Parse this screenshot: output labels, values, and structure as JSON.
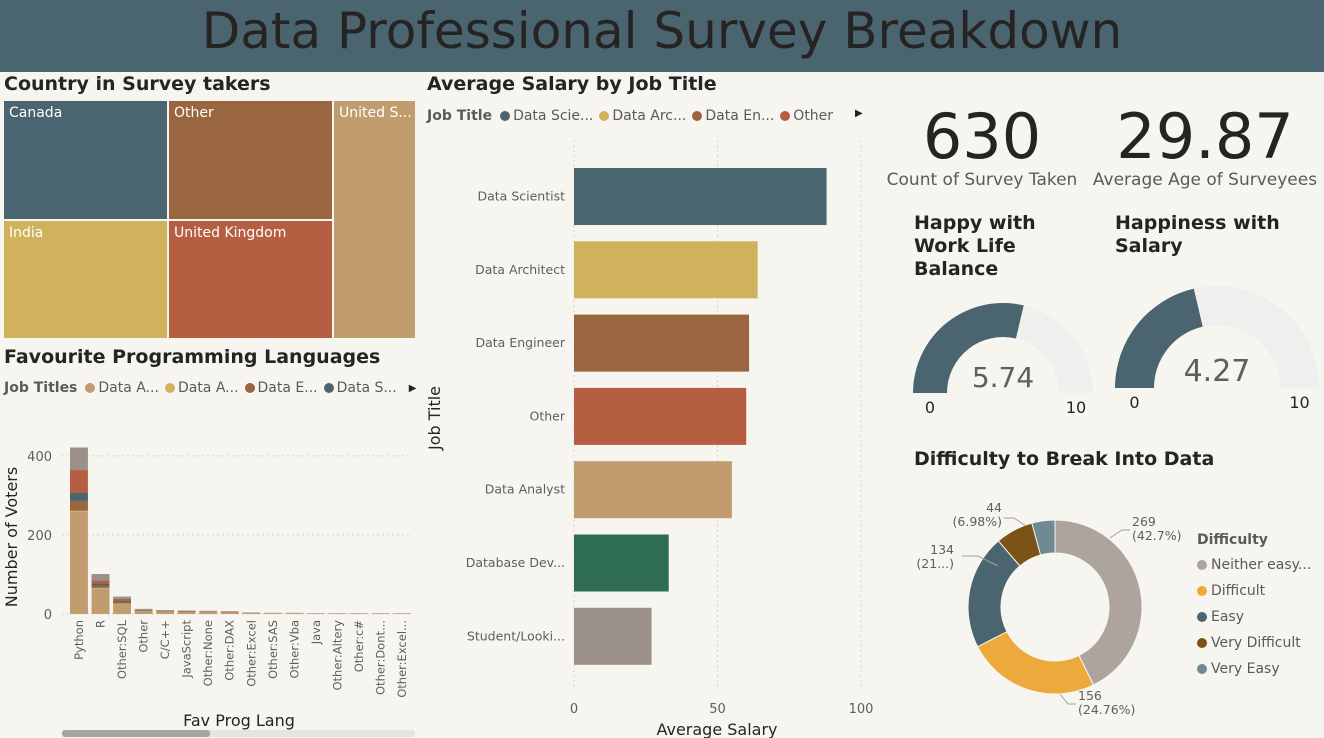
{
  "header": {
    "title": "Data Professional Survey Breakdown"
  },
  "colors": {
    "slate": "#4a6470",
    "gold": "#d0b25d",
    "brown": "#99663f",
    "rust": "#b65e42",
    "tan": "#c19c6e",
    "green": "#2e6d52",
    "gray": "#9b918a",
    "orange": "#eda93c",
    "dark_brown": "#7b5316",
    "teal_gray": "#6f8a92",
    "light_gray": "#ada59d"
  },
  "treemap": {
    "title": "Country in Survey takers",
    "cells": [
      {
        "label": "Canada",
        "color": "slate"
      },
      {
        "label": "Other",
        "color": "brown"
      },
      {
        "label": "United S...",
        "color": "tan"
      },
      {
        "label": "India",
        "color": "gold"
      },
      {
        "label": "United Kingdom",
        "color": "rust"
      }
    ]
  },
  "languages": {
    "title": "Favourite Programming Languages",
    "legend": {
      "title": "Job Titles",
      "items": [
        {
          "label": "Data A...",
          "color": "tan"
        },
        {
          "label": "Data A...",
          "color": "gold"
        },
        {
          "label": "Data E...",
          "color": "brown"
        },
        {
          "label": "Data S...",
          "color": "slate"
        }
      ]
    }
  },
  "salary": {
    "title": "Average Salary by Job Title",
    "legend": {
      "title": "Job Title",
      "items": [
        {
          "label": "Data Scie...",
          "color": "slate"
        },
        {
          "label": "Data Arc...",
          "color": "gold"
        },
        {
          "label": "Data En...",
          "color": "brown"
        },
        {
          "label": "Other",
          "color": "rust"
        }
      ]
    }
  },
  "kpis": {
    "count": {
      "value": "630",
      "label": "Count of Survey Taken"
    },
    "age": {
      "value": "29.87",
      "label": "Average Age of Surveyees"
    }
  },
  "gauges": [
    {
      "title": "Happy with Work Life Balance",
      "value": 5.74,
      "display": "5.74",
      "min": "0",
      "max": "10",
      "min_value": 0,
      "max_value": 10
    },
    {
      "title": "Happiness with Salary",
      "value": 4.27,
      "display": "4.27",
      "min": "0",
      "max": "10",
      "min_value": 0,
      "max_value": 10
    }
  ],
  "difficulty": {
    "title": "Difficulty to Break Into Data",
    "legend_title": "Difficulty",
    "legend": [
      {
        "label": "Neither easy...",
        "color": "light_gray"
      },
      {
        "label": "Difficult",
        "color": "orange"
      },
      {
        "label": "Easy",
        "color": "slate"
      },
      {
        "label": "Very Difficult",
        "color": "dark_brown"
      },
      {
        "label": "Very Easy",
        "color": "teal_gray"
      }
    ]
  },
  "chart_data": [
    {
      "id": "fav-lang",
      "type": "bar",
      "stacked": true,
      "xlabel": "Fav Prog Lang",
      "ylabel": "Number of Voters",
      "ylim": [
        0,
        440
      ],
      "yticks": [
        0,
        200,
        400
      ],
      "categories": [
        "Python",
        "R",
        "Other:SQL",
        "Other",
        "C/C++",
        "JavaScript",
        "Other:None",
        "Other:DAX",
        "Other:Excel",
        "Other:SAS",
        "Other:Vba",
        "Java",
        "Other:Altery",
        "Other:c#",
        "Other:Dont...",
        "Other:Excel..."
      ],
      "series": [
        {
          "name": "Data A...",
          "color": "tan",
          "values": [
            258,
            65,
            25,
            8,
            6,
            5,
            5,
            4,
            2,
            2,
            2,
            1,
            1,
            1,
            1,
            1
          ]
        },
        {
          "name": "Data A...",
          "color": "gold",
          "values": [
            3,
            1,
            1,
            0,
            0,
            0,
            0,
            0,
            0,
            0,
            0,
            0,
            0,
            0,
            0,
            0
          ]
        },
        {
          "name": "Data E...",
          "color": "brown",
          "values": [
            25,
            6,
            4,
            1,
            1,
            1,
            1,
            1,
            0,
            0,
            0,
            0,
            0,
            0,
            0,
            0
          ]
        },
        {
          "name": "Data S...",
          "color": "slate",
          "values": [
            20,
            5,
            3,
            1,
            1,
            1,
            0,
            0,
            0,
            0,
            0,
            0,
            0,
            0,
            0,
            0
          ]
        },
        {
          "color": "rust",
          "values": [
            58,
            8,
            5,
            1,
            1,
            1,
            1,
            1,
            1,
            0,
            0,
            0,
            0,
            0,
            0,
            0
          ]
        },
        {
          "color": "gray",
          "values": [
            57,
            16,
            6,
            2,
            1,
            1,
            1,
            1,
            1,
            1,
            1,
            1,
            1,
            1,
            1,
            1
          ]
        }
      ]
    },
    {
      "id": "salary",
      "type": "bar",
      "orientation": "horizontal",
      "xlabel": "Average Salary",
      "ylabel": "Job Title",
      "xlim": [
        0,
        100
      ],
      "xticks": [
        0,
        50,
        100
      ],
      "categories": [
        "Data Scientist",
        "Data Architect",
        "Data Engineer",
        "Other",
        "Data Analyst",
        "Database Dev...",
        "Student/Looki..."
      ],
      "values": [
        88,
        64,
        61,
        60,
        55,
        33,
        27
      ],
      "colors": [
        "slate",
        "gold",
        "brown",
        "rust",
        "tan",
        "green",
        "gray"
      ]
    },
    {
      "id": "difficulty",
      "type": "pie",
      "donut": true,
      "categories": [
        "Neither easy...",
        "Difficult",
        "Easy",
        "Very Difficult",
        "Very Easy"
      ],
      "values": [
        269,
        156,
        134,
        44,
        27
      ],
      "colors": [
        "light_gray",
        "orange",
        "slate",
        "dark_brown",
        "teal_gray"
      ],
      "labels": [
        {
          "value": "269",
          "pct": "(42.7%)"
        },
        {
          "value": "156",
          "pct": "(24.76%)"
        },
        {
          "value": "134",
          "pct": "(21...)"
        },
        {
          "value": "44",
          "pct": "(6.98%)"
        }
      ]
    }
  ]
}
